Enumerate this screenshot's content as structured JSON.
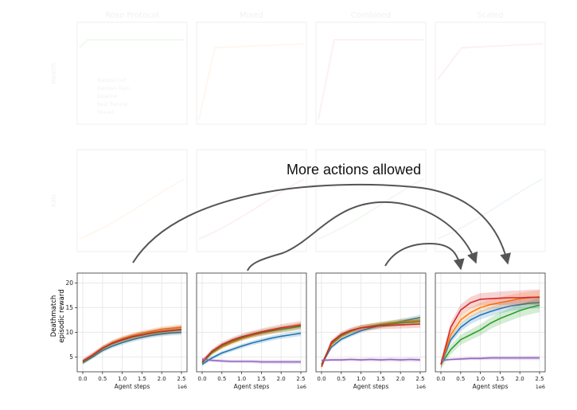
{
  "annotation": {
    "text": "More actions allowed"
  },
  "faded_column_titles": [
    "Rose Protocol",
    "Mixed",
    "Combined",
    "Scaled"
  ],
  "faded_row_labels": [
    "Health",
    "Kills"
  ],
  "faded_legend": [
    "Random Init",
    "Random Train",
    "Baseline",
    "Best Transfer",
    "Shared"
  ],
  "colors": {
    "blue": "#1f77b4",
    "orange": "#ff7f0e",
    "green": "#2ca02c",
    "red": "#d62728",
    "purple": "#9467bd",
    "arrow": "#555555"
  },
  "chart_data": [
    {
      "type": "line",
      "ylabel": "Deathmatch\nepisodic reward",
      "xlabel": "Agent steps",
      "x_exponent": "1e6",
      "xlim": [
        0,
        2.5
      ],
      "ylim": [
        2,
        22
      ],
      "xticks": [
        "0.0",
        "0.5",
        "1.0",
        "1.5",
        "2.0",
        "2.5"
      ],
      "yticks": [
        "5",
        "10",
        "15",
        "20"
      ],
      "x": [
        0,
        0.25,
        0.5,
        0.75,
        1.0,
        1.25,
        1.5,
        1.75,
        2.0,
        2.25,
        2.5
      ],
      "series": [
        {
          "color": "blue",
          "values": [
            3.8,
            5.0,
            6.3,
            7.2,
            7.9,
            8.5,
            9.0,
            9.4,
            9.7,
            9.9,
            10.0
          ]
        },
        {
          "color": "orange",
          "values": [
            4.0,
            5.4,
            6.8,
            7.9,
            8.7,
            9.3,
            9.8,
            10.2,
            10.6,
            10.8,
            11.0
          ]
        },
        {
          "color": "green",
          "values": [
            4.0,
            5.3,
            6.7,
            7.7,
            8.4,
            9.0,
            9.4,
            9.8,
            10.1,
            10.3,
            10.5
          ]
        },
        {
          "color": "red",
          "values": [
            4.2,
            5.4,
            6.8,
            7.8,
            8.5,
            9.1,
            9.5,
            9.9,
            10.2,
            10.4,
            10.6
          ]
        }
      ]
    },
    {
      "type": "line",
      "ylabel": "",
      "xlabel": "Agent steps",
      "x_exponent": "1e6",
      "xlim": [
        0,
        2.5
      ],
      "ylim": [
        2,
        22
      ],
      "xticks": [
        "0.0",
        "0.5",
        "1.0",
        "1.5",
        "2.0",
        "2.5"
      ],
      "yticks": [],
      "x": [
        0,
        0.25,
        0.5,
        0.75,
        1.0,
        1.25,
        1.5,
        1.75,
        2.0,
        2.25,
        2.5
      ],
      "series": [
        {
          "color": "blue",
          "values": [
            3.5,
            4.8,
            5.8,
            6.5,
            7.2,
            7.8,
            8.3,
            8.8,
            9.2,
            9.5,
            9.8
          ]
        },
        {
          "color": "orange",
          "values": [
            4.0,
            5.8,
            7.0,
            7.9,
            8.7,
            9.3,
            9.8,
            10.2,
            10.6,
            10.9,
            11.3
          ]
        },
        {
          "color": "green",
          "values": [
            3.8,
            5.9,
            7.3,
            8.2,
            8.9,
            9.5,
            9.9,
            10.3,
            10.6,
            10.9,
            11.2
          ]
        },
        {
          "color": "red",
          "values": [
            4.0,
            6.2,
            7.5,
            8.4,
            9.1,
            9.6,
            10.1,
            10.5,
            10.9,
            11.2,
            11.5
          ]
        },
        {
          "color": "purple",
          "values": [
            4.6,
            4.3,
            4.2,
            4.1,
            4.1,
            4.1,
            4.0,
            4.0,
            4.0,
            4.0,
            4.0
          ]
        }
      ]
    },
    {
      "type": "line",
      "ylabel": "",
      "xlabel": "Agent steps",
      "x_exponent": "1e6",
      "xlim": [
        0,
        2.5
      ],
      "ylim": [
        2,
        22
      ],
      "xticks": [
        "0.0",
        "0.5",
        "1.0",
        "1.5",
        "2.0",
        "2.5"
      ],
      "yticks": [],
      "x": [
        0,
        0.25,
        0.5,
        0.75,
        1.0,
        1.25,
        1.5,
        1.75,
        2.0,
        2.25,
        2.5
      ],
      "series": [
        {
          "color": "blue",
          "values": [
            3.5,
            7.0,
            8.6,
            9.5,
            10.3,
            10.9,
            11.4,
            11.8,
            12.2,
            12.6,
            13.0
          ]
        },
        {
          "color": "orange",
          "values": [
            3.5,
            7.5,
            9.2,
            10.2,
            10.9,
            11.3,
            11.6,
            11.9,
            12.1,
            12.3,
            12.5
          ]
        },
        {
          "color": "green",
          "values": [
            3.4,
            7.8,
            9.4,
            10.3,
            10.9,
            11.2,
            11.5,
            11.7,
            11.9,
            12.0,
            12.2
          ]
        },
        {
          "color": "red",
          "values": [
            3.0,
            8.0,
            9.6,
            10.4,
            10.9,
            11.1,
            11.3,
            11.4,
            11.5,
            11.6,
            11.7
          ]
        },
        {
          "color": "purple",
          "values": [
            4.3,
            4.4,
            4.4,
            4.5,
            4.4,
            4.5,
            4.4,
            4.5,
            4.4,
            4.5,
            4.4
          ]
        }
      ]
    },
    {
      "type": "line",
      "ylabel": "",
      "xlabel": "Agent steps",
      "x_exponent": "1e6",
      "xlim": [
        0,
        2.5
      ],
      "ylim": [
        2,
        22
      ],
      "xticks": [
        "0.0",
        "0.5",
        "1.0",
        "1.5",
        "2.0",
        "2.5"
      ],
      "yticks": [],
      "x": [
        0,
        0.25,
        0.5,
        0.75,
        1.0,
        1.25,
        1.5,
        1.75,
        2.0,
        2.25,
        2.5
      ],
      "series": [
        {
          "color": "blue",
          "values": [
            3.5,
            8.5,
            11.0,
            12.5,
            13.5,
            14.2,
            14.8,
            15.3,
            15.6,
            15.9,
            16.0
          ]
        },
        {
          "color": "orange",
          "values": [
            3.5,
            9.5,
            12.5,
            14.0,
            15.0,
            15.6,
            16.0,
            16.4,
            16.8,
            17.0,
            17.2
          ]
        },
        {
          "color": "green",
          "values": [
            3.5,
            6.5,
            8.5,
            9.5,
            10.5,
            11.8,
            12.8,
            13.6,
            14.4,
            15.0,
            15.5
          ]
        },
        {
          "color": "red",
          "values": [
            3.5,
            11.0,
            14.5,
            16.0,
            16.7,
            16.8,
            16.9,
            17.0,
            17.0,
            17.1,
            17.1
          ]
        },
        {
          "color": "purple",
          "values": [
            4.3,
            4.5,
            4.6,
            4.7,
            4.7,
            4.8,
            4.8,
            4.8,
            4.8,
            4.8,
            4.8
          ]
        }
      ]
    }
  ]
}
